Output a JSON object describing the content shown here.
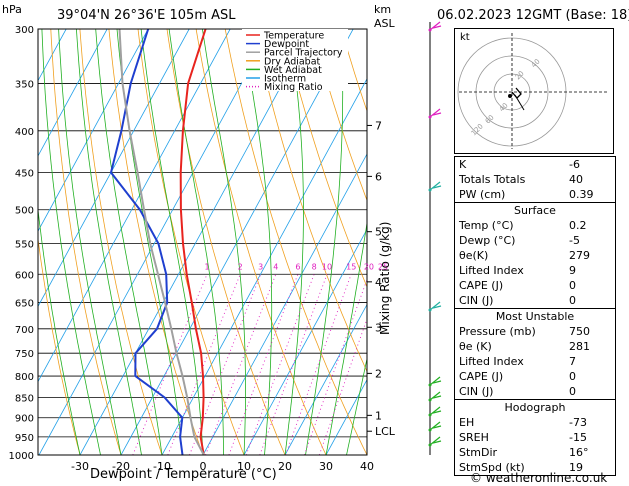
{
  "header": {
    "hpa_unit": "hPa",
    "location": "39°04'N  26°36'E  105m  ASL",
    "km_unit": "km",
    "asl_unit": "ASL",
    "date": "06.02.2023  12GMT  (Base: 18)"
  },
  "legend": {
    "items": [
      {
        "label": "Temperature",
        "color": "#e8231e",
        "style": "solid"
      },
      {
        "label": "Dewpoint",
        "color": "#1f3fcf",
        "style": "solid"
      },
      {
        "label": "Parcel Trajectory",
        "color": "#a0a0a0",
        "style": "solid"
      },
      {
        "label": "Dry Adiabat",
        "color": "#f0a020",
        "style": "solid"
      },
      {
        "label": "Wet Adiabat",
        "color": "#22b022",
        "style": "solid"
      },
      {
        "label": "Isotherm",
        "color": "#22a0e8",
        "style": "solid"
      },
      {
        "label": "Mixing Ratio",
        "color": "#e020c0",
        "style": "dotted"
      }
    ]
  },
  "chart_data": {
    "type": "line",
    "xlabel": "Dewpoint / Temperature (°C)",
    "right_axis_label": "Mixing Ratio (g/kg)",
    "pressure_ticks": [
      300,
      350,
      400,
      450,
      500,
      550,
      600,
      650,
      700,
      750,
      800,
      850,
      900,
      950,
      1000
    ],
    "temp_ticks": [
      -30,
      -20,
      -10,
      0,
      10,
      20,
      30,
      40
    ],
    "km_ticks": [
      {
        "label": "7",
        "p": 394
      },
      {
        "label": "6",
        "p": 455
      },
      {
        "label": "5",
        "p": 532
      },
      {
        "label": "4",
        "p": 613
      },
      {
        "label": "3",
        "p": 697
      },
      {
        "label": "2",
        "p": 794
      },
      {
        "label": "1",
        "p": 894
      },
      {
        "label": "LCL",
        "p": 935
      }
    ],
    "mixing_ratio_labels": [
      "1",
      "2",
      "3",
      "4",
      "6",
      "8",
      "10",
      "15",
      "20",
      "25"
    ],
    "mixing_ratio_values": [
      1,
      2,
      3,
      4,
      6,
      8,
      10,
      15,
      20,
      25
    ],
    "series": [
      {
        "name": "Temperature",
        "points": [
          [
            1000,
            0.2
          ],
          [
            950,
            -3
          ],
          [
            900,
            -5
          ],
          [
            850,
            -7.5
          ],
          [
            800,
            -10.5
          ],
          [
            750,
            -14
          ],
          [
            700,
            -18.5
          ],
          [
            650,
            -23
          ],
          [
            600,
            -28
          ],
          [
            550,
            -33
          ],
          [
            500,
            -38
          ],
          [
            450,
            -43
          ],
          [
            400,
            -48
          ],
          [
            350,
            -53
          ],
          [
            300,
            -56
          ]
        ]
      },
      {
        "name": "Dewpoint",
        "points": [
          [
            1000,
            -5
          ],
          [
            950,
            -8
          ],
          [
            900,
            -10
          ],
          [
            850,
            -17
          ],
          [
            800,
            -27
          ],
          [
            750,
            -30
          ],
          [
            700,
            -28
          ],
          [
            650,
            -29
          ],
          [
            600,
            -33
          ],
          [
            550,
            -39
          ],
          [
            500,
            -48
          ],
          [
            450,
            -60
          ],
          [
            400,
            -63
          ],
          [
            350,
            -67
          ],
          [
            300,
            -70
          ]
        ]
      },
      {
        "name": "Parcel Trajectory",
        "points": [
          [
            1000,
            0.2
          ],
          [
            950,
            -4.5
          ],
          [
            900,
            -8
          ],
          [
            850,
            -11.5
          ],
          [
            800,
            -15.5
          ],
          [
            750,
            -20
          ],
          [
            700,
            -24.5
          ],
          [
            650,
            -29.5
          ],
          [
            600,
            -35
          ],
          [
            550,
            -41
          ],
          [
            500,
            -47
          ],
          [
            450,
            -53.5
          ],
          [
            400,
            -61
          ],
          [
            350,
            -69
          ],
          [
            300,
            -77
          ]
        ]
      }
    ]
  },
  "hodograph": {
    "unit_label": "kt",
    "ring_labels": [
      "20",
      "40",
      "120",
      "60",
      "40"
    ]
  },
  "indices": {
    "basic": [
      {
        "label": "K",
        "value": "-6"
      },
      {
        "label": "Totals Totals",
        "value": "40"
      },
      {
        "label": "PW (cm)",
        "value": "0.39"
      }
    ],
    "surface_title": "Surface",
    "surface": [
      {
        "label": "Temp (°C)",
        "value": "0.2"
      },
      {
        "label": "Dewp (°C)",
        "value": "-5"
      },
      {
        "label": "θe(K)",
        "value": "279"
      },
      {
        "label": "Lifted Index",
        "value": "9"
      },
      {
        "label": "CAPE (J)",
        "value": "0"
      },
      {
        "label": "CIN (J)",
        "value": "0"
      }
    ],
    "unstable_title": "Most Unstable",
    "unstable": [
      {
        "label": "Pressure (mb)",
        "value": "750"
      },
      {
        "label": "θe (K)",
        "value": "281"
      },
      {
        "label": "Lifted Index",
        "value": "7"
      },
      {
        "label": "CAPE (J)",
        "value": "0"
      },
      {
        "label": "CIN (J)",
        "value": "0"
      }
    ],
    "hodo_title": "Hodograph",
    "hodo": [
      {
        "label": "EH",
        "value": "-73"
      },
      {
        "label": "SREH",
        "value": "-15"
      },
      {
        "label": "StmDir",
        "value": "16°"
      },
      {
        "label": "StmSpd (kt)",
        "value": "19"
      }
    ]
  },
  "credit": "© weatheronline.co.uk"
}
